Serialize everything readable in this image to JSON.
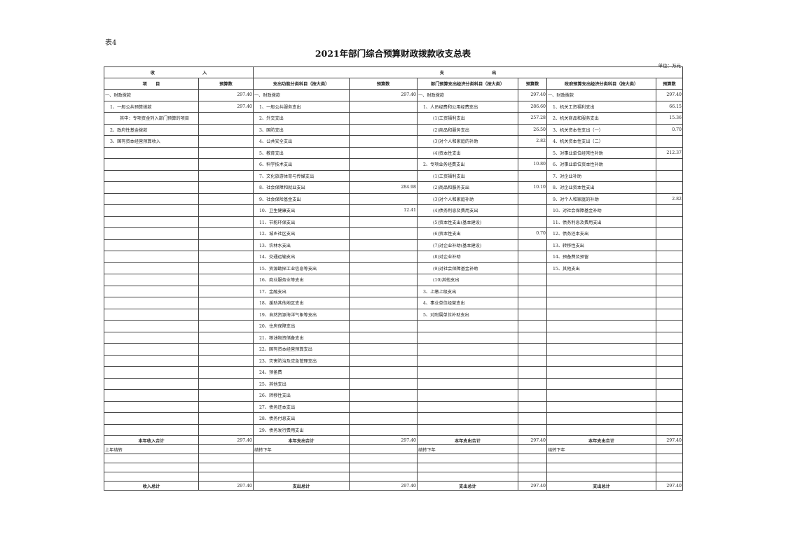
{
  "doc": {
    "tag": "表4",
    "title": "2021年部门综合预算财政拨款收支总表",
    "unit": "单位：万元"
  },
  "header": {
    "income": "收　　　　　　　　　　　入",
    "expense": "支　　　　　　　　　　　出",
    "columns": [
      "项　　目",
      "预算数",
      "支出功能分类科目（按大类）",
      "预算数",
      "部门预算支出经济分类科目（按大类）",
      "预算数",
      "政府预算支出经济分类科目（按大类）",
      "预算数"
    ]
  },
  "rows": [
    [
      "一、财政拨款",
      "297.40",
      "一、财政拨款",
      "297.40",
      "一、财政拨款",
      "297.40",
      "一、财政拨款",
      "297.40"
    ],
    [
      "1、一般公共预算拨款",
      "297.40",
      "1、一般公共服务支出",
      "",
      "1、人员经费和公用经费支出",
      "286.60",
      "1、机关工资福利支出",
      "66.15"
    ],
    [
      "其中：专项资金列入部门预算的项目",
      "",
      "2、外交支出",
      "",
      "(1)工资福利支出",
      "257.28",
      "2、机关商品和服务支出",
      "15.36"
    ],
    [
      "2、政府性基金拨款",
      "",
      "3、国防支出",
      "",
      "(2)商品和服务支出",
      "26.50",
      "3、机关资本性支出（一）",
      "0.70"
    ],
    [
      "3、国有资本经营预算收入",
      "",
      "4、公共安全支出",
      "",
      "(3)对个人和家庭的补助",
      "2.82",
      "4、机关资本性支出（二）",
      ""
    ],
    [
      "",
      "",
      "5、教育支出",
      "",
      "(4)资本性支出",
      "",
      "5、对事业单位经常性补助",
      "212.37"
    ],
    [
      "",
      "",
      "6、科学技术支出",
      "",
      "2、专项业务经费支出",
      "10.80",
      "6、对事业单位资本性补助",
      ""
    ],
    [
      "",
      "",
      "7、文化旅游体育与传媒支出",
      "",
      "(1)工资福利支出",
      "",
      "7、对企业补助",
      ""
    ],
    [
      "",
      "",
      "8、社会保障和就业支出",
      "284.98",
      "(2)商品和服务支出",
      "10.10",
      "8、对企业资本性支出",
      ""
    ],
    [
      "",
      "",
      "9、社会保险基金支出",
      "",
      "(3)对个人和家庭补助",
      "",
      "9、对个人和家庭的补助",
      "2.82"
    ],
    [
      "",
      "",
      "10、卫生健康支出",
      "12.41",
      "(4)债务利息及费用支出",
      "",
      "10、对社会保障基金补助",
      ""
    ],
    [
      "",
      "",
      "11、节能环保支出",
      "",
      "(5)资本性支出(基本建设)",
      "",
      "11、债务利息及费用支出",
      ""
    ],
    [
      "",
      "",
      "12、城乡社区支出",
      "",
      "(6)资本性支出",
      "0.70",
      "12、债务还本支出",
      ""
    ],
    [
      "",
      "",
      "13、农林水支出",
      "",
      "(7)对企业补助(基本建设)",
      "",
      "13、转移性支出",
      ""
    ],
    [
      "",
      "",
      "14、交通运输支出",
      "",
      "(8)对企业补助",
      "",
      "14、预备费及预留",
      ""
    ],
    [
      "",
      "",
      "15、资源勘探工业信息等支出",
      "",
      "(9)对社会保障基金补助",
      "",
      "15、其他支出",
      ""
    ],
    [
      "",
      "",
      "16、商业服务业等支出",
      "",
      "(10)其他支出",
      "",
      "",
      ""
    ],
    [
      "",
      "",
      "17、金融支出",
      "",
      "3、上缴上级支出",
      "",
      "",
      ""
    ],
    [
      "",
      "",
      "18、援助其他地区支出",
      "",
      "4、事业单位经营支出",
      "",
      "",
      ""
    ],
    [
      "",
      "",
      "19、自然资源海洋气象等支出",
      "",
      "5、对附属单位补助支出",
      "",
      "",
      ""
    ],
    [
      "",
      "",
      "20、住房保障支出",
      "",
      "",
      "",
      "",
      ""
    ],
    [
      "",
      "",
      "21、粮油物资储备支出",
      "",
      "",
      "",
      "",
      ""
    ],
    [
      "",
      "",
      "22、国有资本经营预算支出",
      "",
      "",
      "",
      "",
      ""
    ],
    [
      "",
      "",
      "23、灾害防治及应急管理支出",
      "",
      "",
      "",
      "",
      ""
    ],
    [
      "",
      "",
      "24、预备费",
      "",
      "",
      "",
      "",
      ""
    ],
    [
      "",
      "",
      "25、其他支出",
      "",
      "",
      "",
      "",
      ""
    ],
    [
      "",
      "",
      "26、转移性支出",
      "",
      "",
      "",
      "",
      ""
    ],
    [
      "",
      "",
      "27、债务还本支出",
      "",
      "",
      "",
      "",
      ""
    ],
    [
      "",
      "",
      "28、债务付息支出",
      "",
      "",
      "",
      "",
      ""
    ],
    [
      "",
      "",
      "29、债务发行费用支出",
      "",
      "",
      "",
      "",
      ""
    ]
  ],
  "year_totals": [
    "本年收入合计",
    "297.40",
    "本年支出合计",
    "297.40",
    "本年支出合计",
    "297.40",
    "本年支出合计",
    "297.40"
  ],
  "carry": [
    "上年结转",
    "",
    "结转下年",
    "",
    "结转下年",
    "",
    "结转下年",
    ""
  ],
  "grand_totals": [
    "收入总计",
    "297.40",
    "支出总计",
    "297.40",
    "支出总计",
    "297.40",
    "支出总计",
    "297.40"
  ]
}
